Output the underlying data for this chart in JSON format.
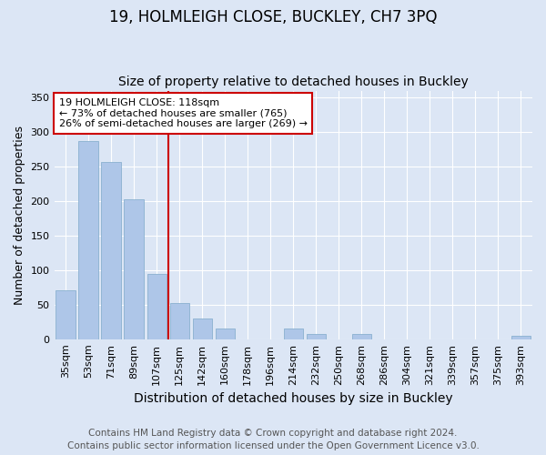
{
  "title1": "19, HOLMLEIGH CLOSE, BUCKLEY, CH7 3PQ",
  "title2": "Size of property relative to detached houses in Buckley",
  "xlabel": "Distribution of detached houses by size in Buckley",
  "ylabel": "Number of detached properties",
  "categories": [
    "35sqm",
    "53sqm",
    "71sqm",
    "89sqm",
    "107sqm",
    "125sqm",
    "142sqm",
    "160sqm",
    "178sqm",
    "196sqm",
    "214sqm",
    "232sqm",
    "250sqm",
    "268sqm",
    "286sqm",
    "304sqm",
    "321sqm",
    "339sqm",
    "357sqm",
    "375sqm",
    "393sqm"
  ],
  "values": [
    71,
    287,
    257,
    203,
    95,
    52,
    30,
    15,
    0,
    0,
    15,
    8,
    0,
    8,
    0,
    0,
    0,
    0,
    0,
    0,
    5
  ],
  "bar_color": "#aec6e8",
  "bar_edge_color": "#8ab0d0",
  "vline_color": "#cc0000",
  "vline_x_index": 4.5,
  "annotation_text": "19 HOLMLEIGH CLOSE: 118sqm\n← 73% of detached houses are smaller (765)\n26% of semi-detached houses are larger (269) →",
  "annotation_box_color": "white",
  "annotation_box_edge": "#cc0000",
  "ylim": [
    0,
    360
  ],
  "yticks": [
    0,
    50,
    100,
    150,
    200,
    250,
    300,
    350
  ],
  "background_color": "#dce6f5",
  "grid_color": "white",
  "footer1": "Contains HM Land Registry data © Crown copyright and database right 2024.",
  "footer2": "Contains public sector information licensed under the Open Government Licence v3.0.",
  "title1_fontsize": 12,
  "title2_fontsize": 10,
  "xlabel_fontsize": 10,
  "ylabel_fontsize": 9,
  "tick_fontsize": 8,
  "footer_fontsize": 7.5,
  "annot_fontsize": 8
}
